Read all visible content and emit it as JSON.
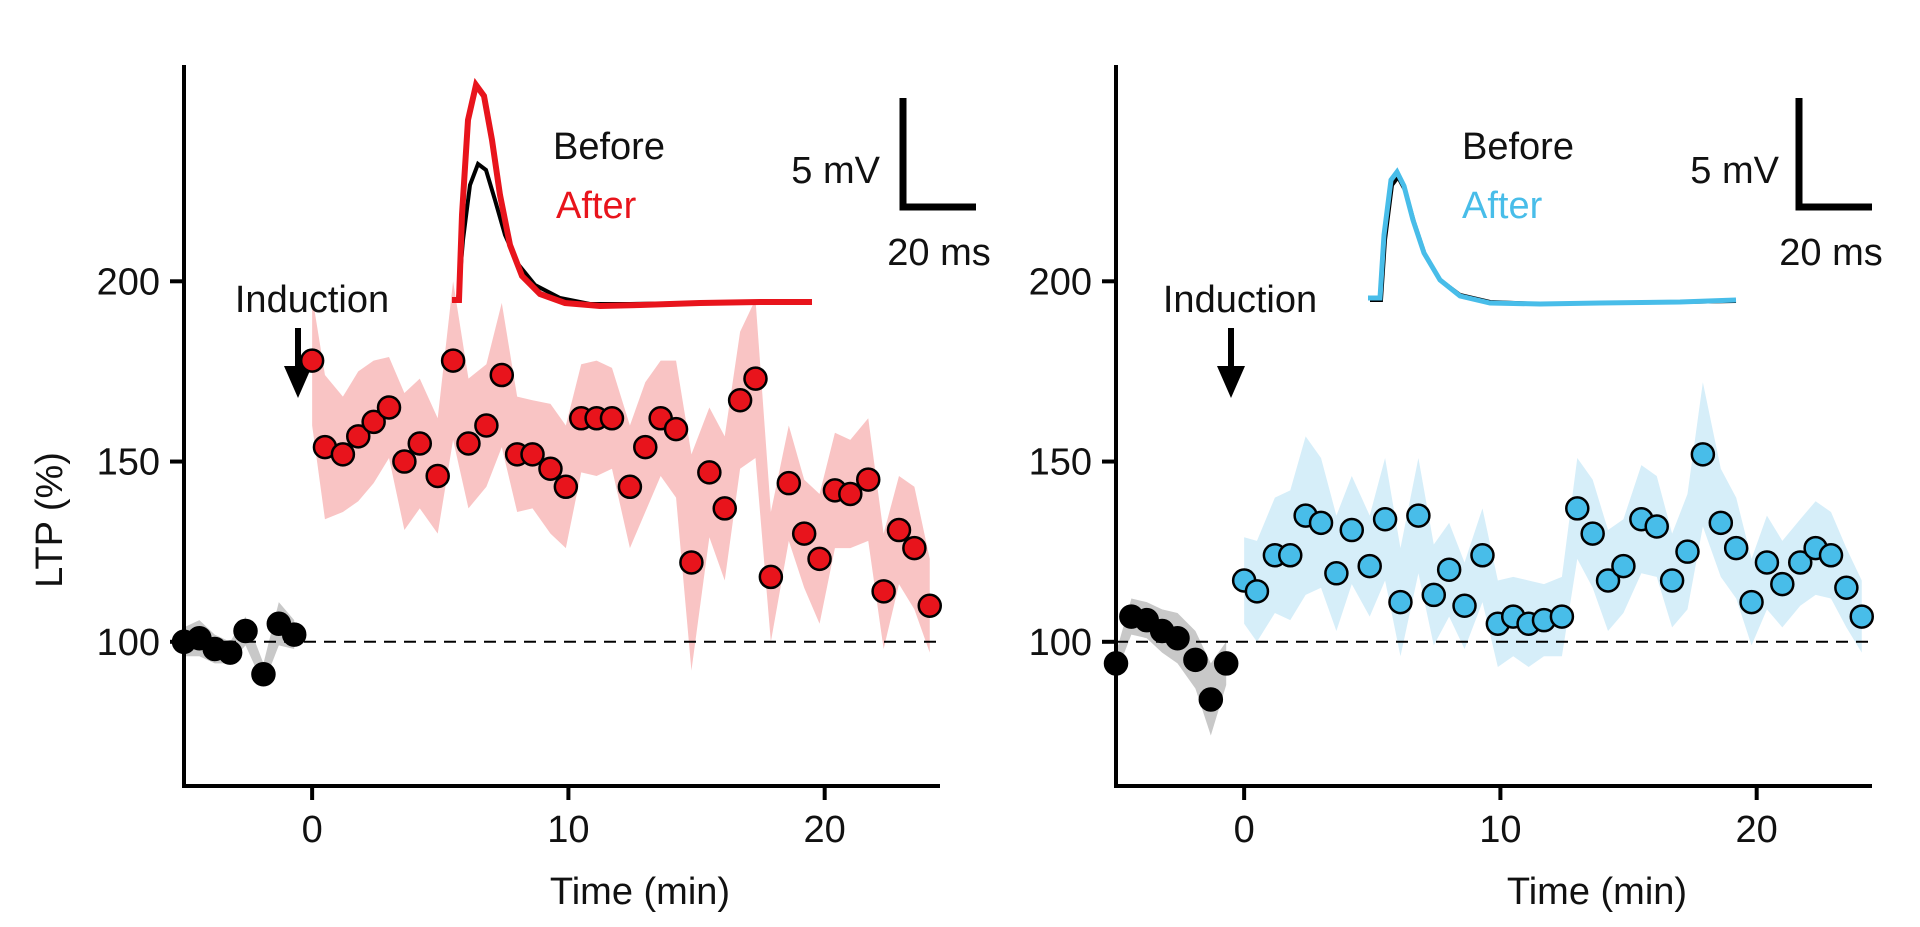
{
  "chart_data": [
    {
      "type": "scatter",
      "panel": "left",
      "title": "",
      "xlabel": "Time (min)",
      "ylabel": "LTP (%)",
      "xlim": [
        -5,
        24.5
      ],
      "ylim": [
        60,
        260
      ],
      "xticks": [
        0,
        10,
        20
      ],
      "xtick_labels": [
        "0",
        "10",
        "20"
      ],
      "yticks": [
        100,
        150,
        200
      ],
      "ytick_labels": [
        "100",
        "150",
        "200"
      ],
      "baseline": 100,
      "annotation": "Induction",
      "legend": {
        "before": "Before",
        "after": "After"
      },
      "scalebar": {
        "vertical": "5 mV",
        "horizontal": "20 ms"
      },
      "colors": {
        "after": "#e8141c",
        "after_band": "#f9c4c4",
        "before": "#000000",
        "before_band": "#c8c8c8"
      },
      "series": [
        {
          "name": "Before",
          "x": [
            -5,
            -4.4,
            -3.8,
            -3.2,
            -2.6,
            -1.9,
            -1.3,
            -0.7
          ],
          "values": [
            100,
            101,
            98,
            97,
            103,
            91,
            105,
            102
          ],
          "sem": [
            4,
            5,
            4,
            3,
            4,
            3,
            6,
            4
          ]
        },
        {
          "name": "After",
          "x": [
            0.0,
            0.5,
            1.2,
            1.8,
            2.4,
            3.0,
            3.6,
            4.2,
            4.9,
            5.5,
            6.1,
            6.8,
            7.4,
            8.0,
            8.6,
            9.3,
            9.9,
            10.5,
            11.1,
            11.7,
            12.4,
            13.0,
            13.6,
            14.2,
            14.8,
            15.5,
            16.1,
            16.7,
            17.3,
            17.9,
            18.6,
            19.2,
            19.8,
            20.4,
            21.0,
            21.7,
            22.3,
            22.9,
            23.5,
            24.1
          ],
          "values": [
            178,
            154,
            152,
            157,
            161,
            165,
            150,
            155,
            146,
            178,
            155,
            160,
            174,
            152,
            152,
            148,
            143,
            162,
            162,
            162,
            143,
            154,
            162,
            159,
            122,
            147,
            137,
            167,
            173,
            118,
            144,
            130,
            123,
            142,
            141,
            145,
            114,
            131,
            126,
            110
          ],
          "sem": [
            18,
            20,
            16,
            18,
            17,
            14,
            19,
            18,
            16,
            22,
            18,
            17,
            20,
            16,
            15,
            18,
            17,
            15,
            16,
            14,
            17,
            18,
            16,
            19,
            30,
            18,
            20,
            19,
            22,
            18,
            16,
            15,
            18,
            16,
            15,
            17,
            16,
            15,
            17,
            13
          ]
        }
      ]
    },
    {
      "type": "scatter",
      "panel": "right",
      "title": "",
      "xlabel": "Time (min)",
      "ylabel": "",
      "xlim": [
        -5,
        24.5
      ],
      "ylim": [
        60,
        260
      ],
      "xticks": [
        0,
        10,
        20
      ],
      "xtick_labels": [
        "0",
        "10",
        "20"
      ],
      "yticks": [
        100,
        150,
        200
      ],
      "ytick_labels": [
        "100",
        "150",
        "200"
      ],
      "baseline": 100,
      "annotation": "Induction",
      "legend": {
        "before": "Before",
        "after": "After"
      },
      "scalebar": {
        "vertical": "5 mV",
        "horizontal": "20 ms"
      },
      "colors": {
        "after": "#48bde9",
        "after_band": "#d6eef9",
        "before": "#000000",
        "before_band": "#c8c8c8"
      },
      "series": [
        {
          "name": "Before",
          "x": [
            -5,
            -4.4,
            -3.8,
            -3.2,
            -2.6,
            -1.9,
            -1.3,
            -0.7
          ],
          "values": [
            94,
            107,
            106,
            103,
            101,
            95,
            84,
            94
          ],
          "sem": [
            3,
            5,
            5,
            6,
            7,
            8,
            10,
            6
          ]
        },
        {
          "name": "After",
          "x": [
            0.0,
            0.5,
            1.2,
            1.8,
            2.4,
            3.0,
            3.6,
            4.2,
            4.9,
            5.5,
            6.1,
            6.8,
            7.4,
            8.0,
            8.6,
            9.3,
            9.9,
            10.5,
            11.1,
            11.7,
            12.4,
            13.0,
            13.6,
            14.2,
            14.8,
            15.5,
            16.1,
            16.7,
            17.3,
            17.9,
            18.6,
            19.2,
            19.8,
            20.4,
            21.0,
            21.7,
            22.3,
            22.9,
            23.5,
            24.1
          ],
          "values": [
            117,
            114,
            124,
            124,
            135,
            133,
            119,
            131,
            121,
            134,
            111,
            135,
            113,
            120,
            110,
            124,
            105,
            107,
            105,
            106,
            107,
            137,
            130,
            117,
            121,
            134,
            132,
            117,
            125,
            152,
            133,
            126,
            111,
            122,
            116,
            122,
            126,
            124,
            115,
            107
          ],
          "sem": [
            12,
            14,
            16,
            18,
            22,
            18,
            16,
            15,
            14,
            17,
            15,
            16,
            14,
            13,
            12,
            13,
            12,
            11,
            12,
            10,
            11,
            14,
            15,
            14,
            13,
            15,
            14,
            13,
            16,
            20,
            15,
            14,
            12,
            13,
            12,
            12,
            13,
            12,
            11,
            10
          ]
        }
      ]
    }
  ]
}
